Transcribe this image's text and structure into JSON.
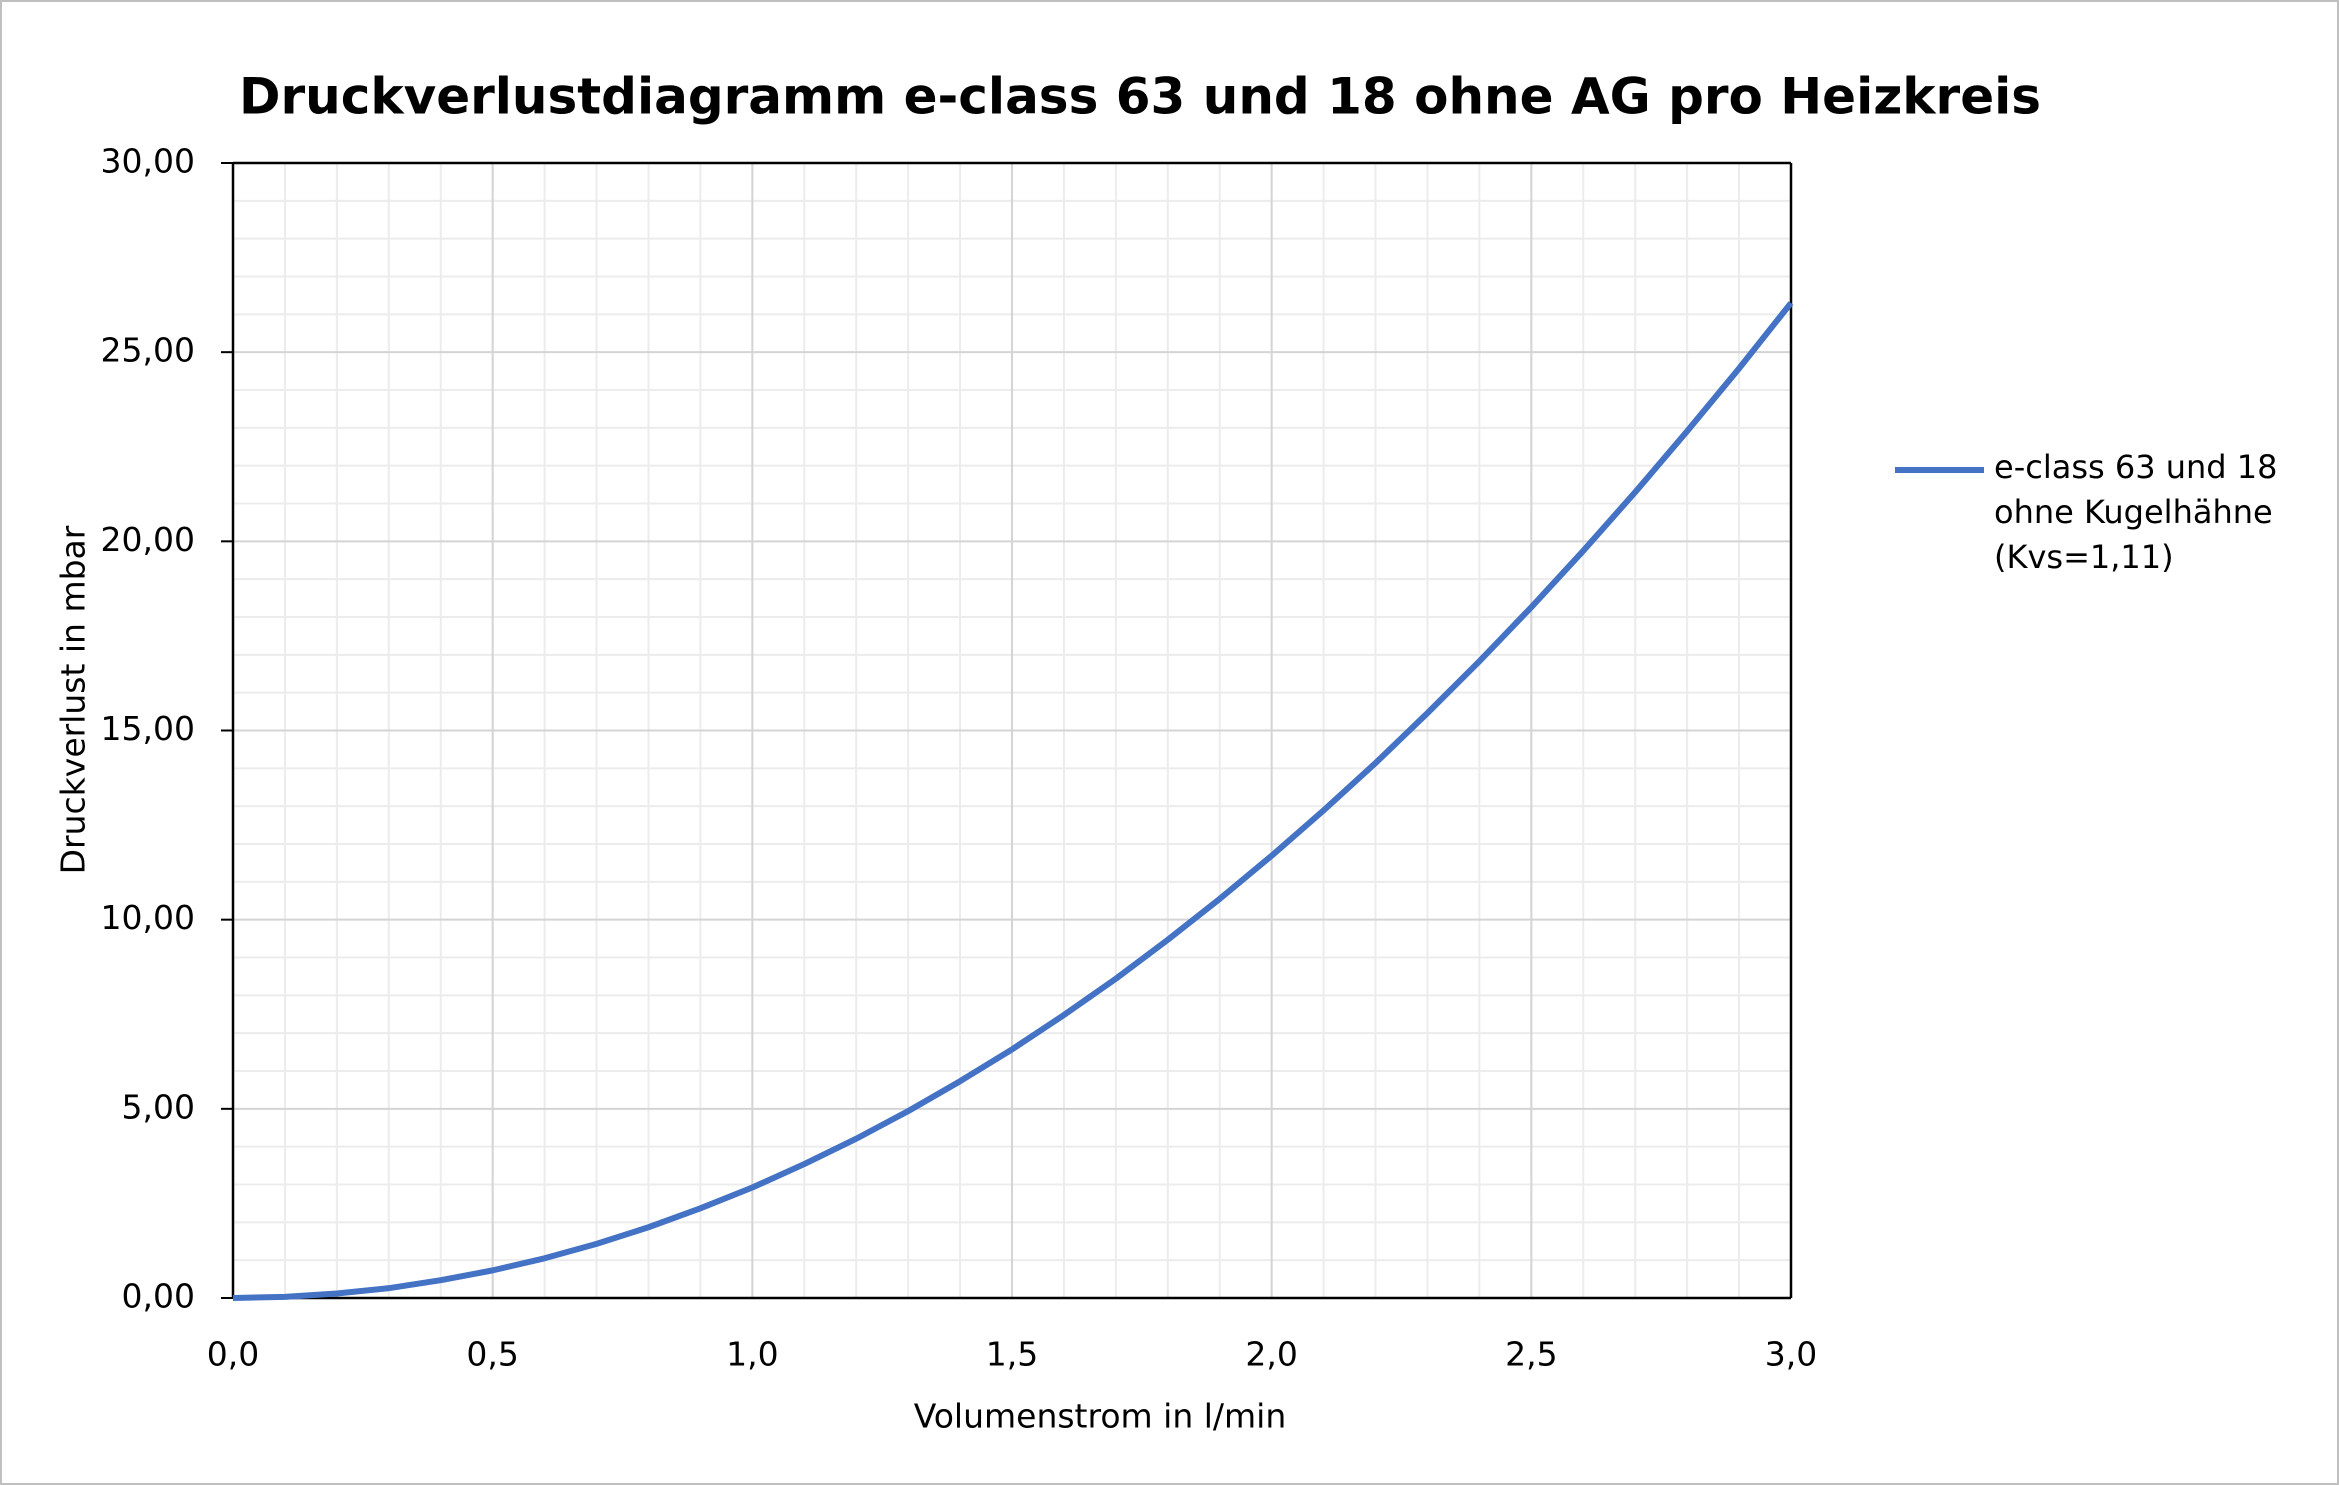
{
  "chart_data": {
    "type": "line",
    "title": "Druckverlustdiagramm e-class 63 und 18 ohne AG pro Heizkreis",
    "x_label": "Volumenstrom in l/min",
    "y_label": "Druckverlust in mbar",
    "x": [
      0,
      0.1,
      0.2,
      0.3,
      0.4,
      0.5,
      0.6,
      0.7,
      0.8,
      0.9,
      1.0,
      1.1,
      1.2,
      1.3,
      1.4,
      1.5,
      1.6,
      1.7,
      1.8,
      1.9,
      2.0,
      2.1,
      2.2,
      2.3,
      2.4,
      2.5,
      2.6,
      2.7,
      2.8,
      2.9,
      3.0
    ],
    "series": [
      {
        "name": "e-class 63 und 18 ohne Kugelhähne (Kvs=1,11)",
        "color": "#4472c4",
        "values": [
          0,
          0.03,
          0.12,
          0.26,
          0.47,
          0.73,
          1.05,
          1.43,
          1.87,
          2.37,
          2.92,
          3.54,
          4.21,
          4.94,
          5.73,
          6.57,
          7.48,
          8.44,
          9.47,
          10.55,
          11.69,
          12.89,
          14.14,
          15.46,
          16.83,
          18.26,
          19.75,
          21.3,
          22.91,
          24.57,
          26.3
        ]
      }
    ],
    "xlim": [
      0,
      3
    ],
    "ylim": [
      0,
      30
    ],
    "xticks": [
      {
        "value": 0,
        "label": "0,0"
      },
      {
        "value": 0.5,
        "label": "0,5"
      },
      {
        "value": 1,
        "label": "1,0"
      },
      {
        "value": 1.5,
        "label": "1,5"
      },
      {
        "value": 2,
        "label": "2,0"
      },
      {
        "value": 2.5,
        "label": "2,5"
      },
      {
        "value": 3,
        "label": "3,0"
      }
    ],
    "yticks": [
      {
        "value": 0,
        "label": "0,00"
      },
      {
        "value": 5,
        "label": "5,00"
      },
      {
        "value": 10,
        "label": "10,00"
      },
      {
        "value": 15,
        "label": "15,00"
      },
      {
        "value": 20,
        "label": "20,00"
      },
      {
        "value": 25,
        "label": "25,00"
      },
      {
        "value": 30,
        "label": "30,00"
      }
    ],
    "grid": true,
    "minor_grid": true,
    "legend": "right"
  }
}
